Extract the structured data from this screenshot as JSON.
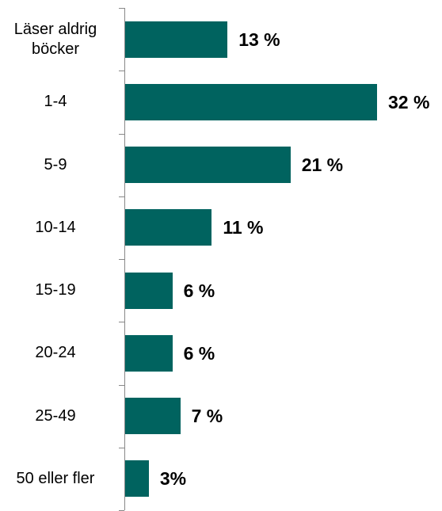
{
  "chart_data": {
    "type": "bar",
    "orientation": "horizontal",
    "categories": [
      "Läser aldrig böcker",
      "1-4",
      "5-9",
      "10-14",
      "15-19",
      "20-24",
      "25-49",
      "50 eller fler"
    ],
    "values": [
      13,
      32,
      21,
      11,
      6,
      6,
      7,
      3
    ],
    "value_labels": [
      "13 %",
      "32 %",
      "21 %",
      "11 %",
      "6 %",
      "6 %",
      "7 %",
      "3%"
    ],
    "color": "#00635f"
  }
}
